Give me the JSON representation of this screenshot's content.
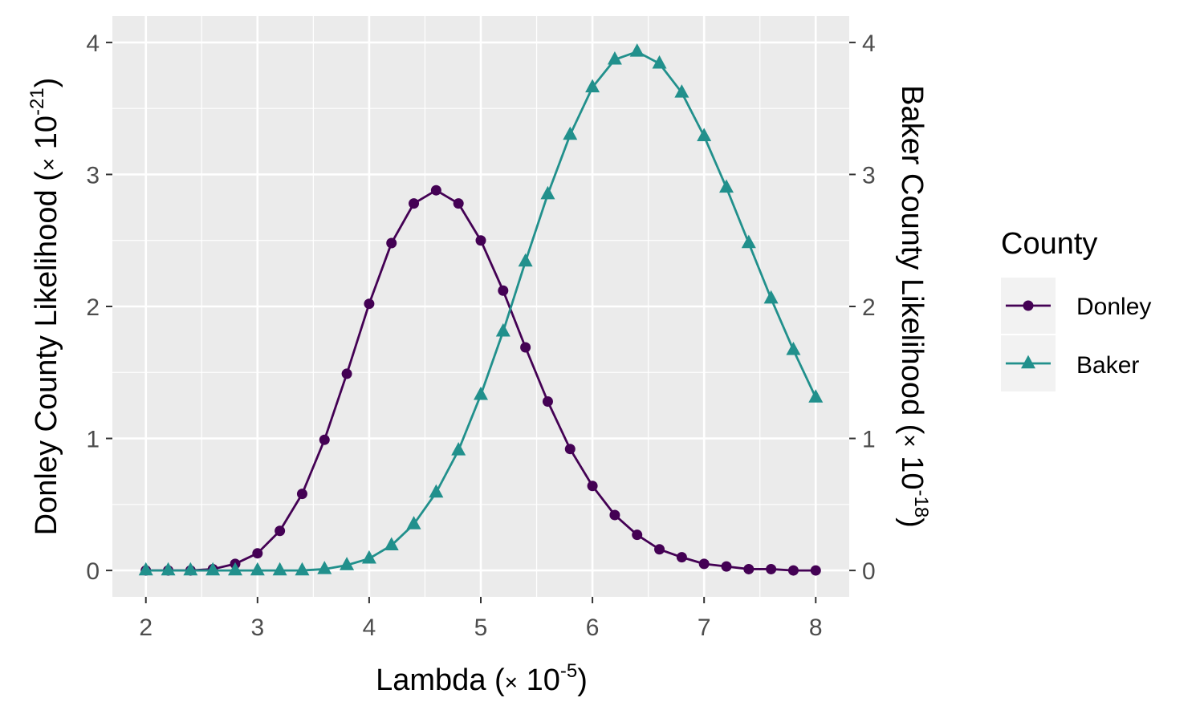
{
  "chart_data": {
    "type": "line",
    "x": [
      2.0,
      2.2,
      2.4,
      2.6,
      2.8,
      3.0,
      3.2,
      3.4,
      3.6,
      3.8,
      4.0,
      4.2,
      4.4,
      4.6,
      4.8,
      5.0,
      5.2,
      5.4,
      5.6,
      5.8,
      6.0,
      6.2,
      6.4,
      6.6,
      6.8,
      7.0,
      7.2,
      7.4,
      7.6,
      7.8,
      8.0
    ],
    "series": [
      {
        "name": "Donley",
        "axis": "left",
        "color": "#440154",
        "marker": "circle",
        "values": [
          0.0,
          0.0,
          0.0,
          0.01,
          0.05,
          0.13,
          0.3,
          0.58,
          0.99,
          1.49,
          2.02,
          2.48,
          2.78,
          2.88,
          2.78,
          2.5,
          2.12,
          1.69,
          1.28,
          0.92,
          0.64,
          0.42,
          0.27,
          0.16,
          0.1,
          0.05,
          0.03,
          0.01,
          0.01,
          0.0,
          0.0
        ]
      },
      {
        "name": "Baker",
        "axis": "right",
        "color": "#21908C",
        "marker": "triangle",
        "values": [
          0.0,
          0.0,
          0.0,
          0.0,
          0.0,
          0.0,
          0.0,
          0.0,
          0.01,
          0.04,
          0.09,
          0.19,
          0.35,
          0.59,
          0.91,
          1.33,
          1.81,
          2.34,
          2.85,
          3.3,
          3.66,
          3.87,
          3.93,
          3.84,
          3.62,
          3.29,
          2.9,
          2.48,
          2.06,
          1.67,
          1.31
        ]
      }
    ],
    "xlim": [
      1.7,
      8.3
    ],
    "ylim_left": [
      -0.2,
      4.2
    ],
    "ylim_right": [
      -0.2,
      4.2
    ],
    "x_ticks": [
      "2",
      "3",
      "4",
      "5",
      "6",
      "7",
      "8"
    ],
    "y_ticks_left": [
      "0",
      "1",
      "2",
      "3",
      "4"
    ],
    "y_ticks_right": [
      "0",
      "1",
      "2",
      "3",
      "4"
    ],
    "xlabel": {
      "text": "Lambda (",
      "times": "×",
      "base": " 10",
      "exp": "-5",
      "close": ")"
    },
    "ylabel_left": {
      "text": "Donley County Likelihood (",
      "times": "×",
      "base": " 10",
      "exp": "-21",
      "close": ")"
    },
    "ylabel_right": {
      "text": "Baker County Likelihood (",
      "times": "×",
      "base": " 10",
      "exp": "-18",
      "close": ")"
    },
    "legend": {
      "title": "County",
      "position": "right",
      "entries": [
        "Donley",
        "Baker"
      ]
    },
    "grid": true,
    "panel_color": "#EBEBEB",
    "grid_color": "#FFFFFF"
  }
}
